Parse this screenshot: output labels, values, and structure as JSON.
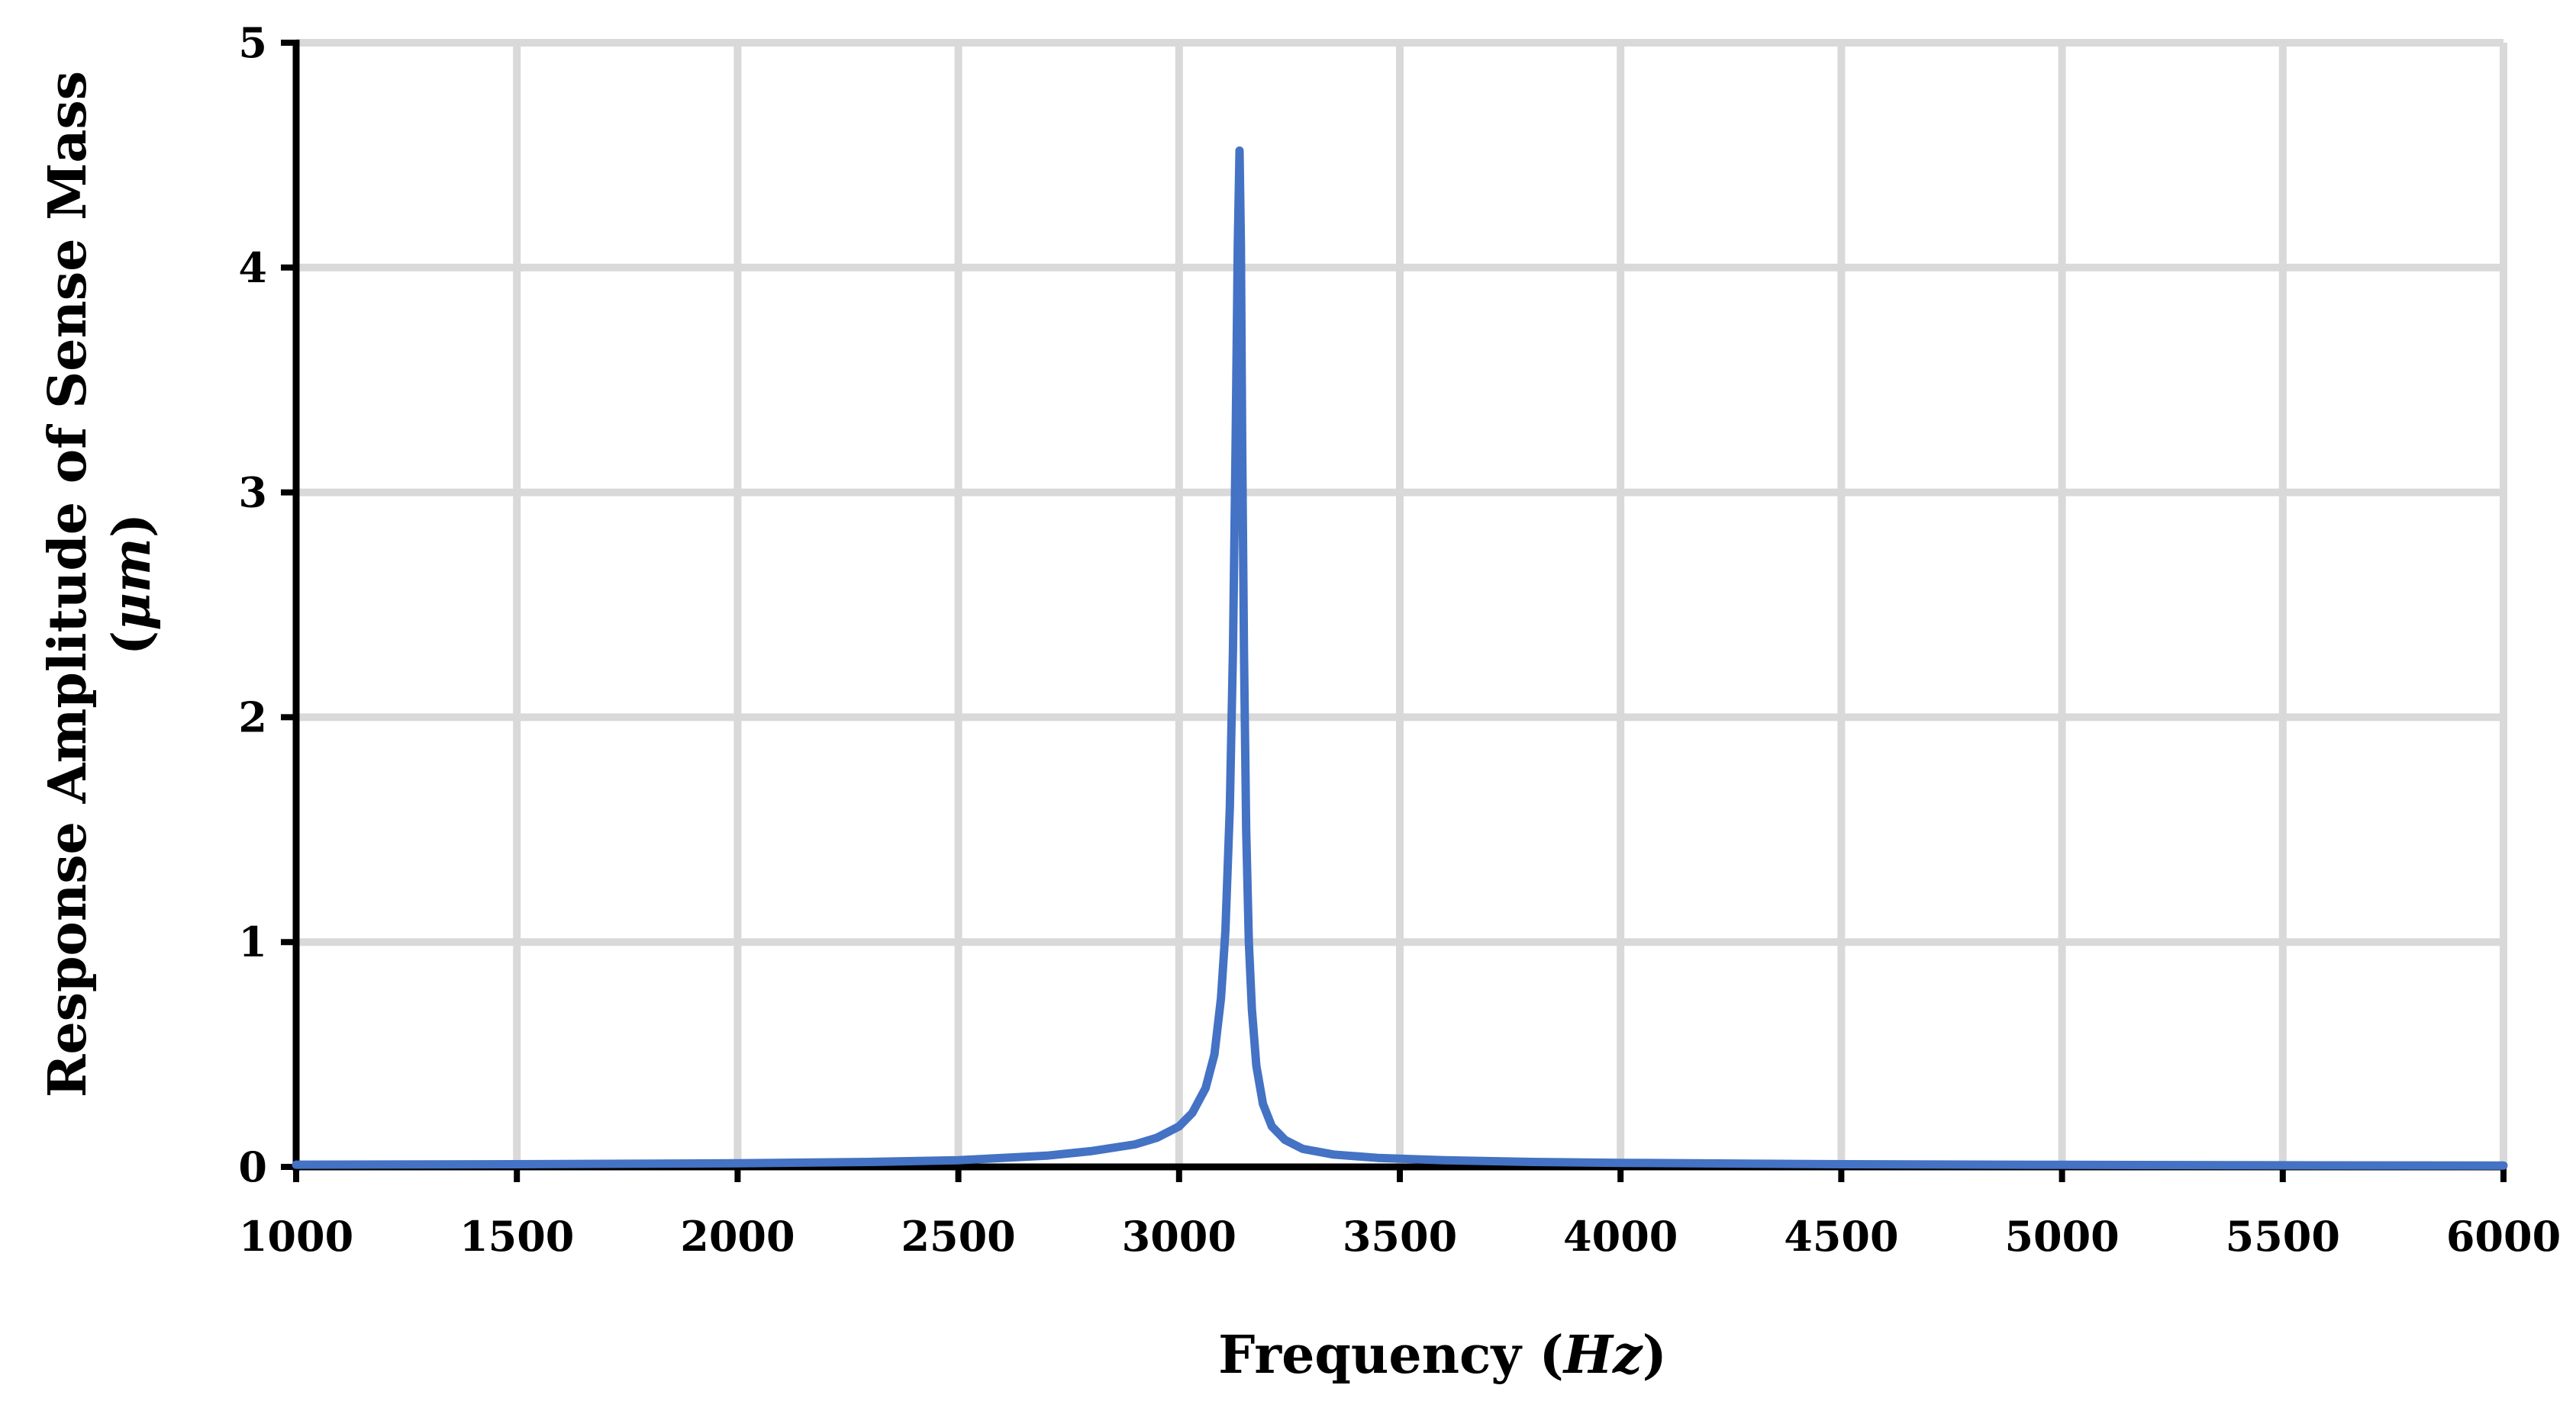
{
  "chart_data": {
    "type": "line",
    "title": "",
    "xlabel": {
      "prefix": "Frequency (",
      "italic": "Hz",
      "suffix": ")"
    },
    "ylabel": {
      "line1": "Response Amplitude of Sense Mass",
      "prefix": "(",
      "italic": "μm",
      "suffix": ")"
    },
    "xlim": [
      1000,
      6000
    ],
    "ylim": [
      0,
      5
    ],
    "x_ticks": [
      1000,
      1500,
      2000,
      2500,
      3000,
      3500,
      4000,
      4500,
      5000,
      5500,
      6000
    ],
    "x_tick_labels": [
      "1000",
      "1500",
      "2000",
      "2500",
      "3000",
      "3500",
      "4000",
      "4500",
      "5000",
      "5500",
      "6000"
    ],
    "y_ticks": [
      0,
      1,
      2,
      3,
      4,
      5
    ],
    "y_tick_labels": [
      "0",
      "1",
      "2",
      "3",
      "4",
      "5"
    ],
    "grid": true,
    "legend": "none",
    "series": [
      {
        "color": "#4472C4",
        "x": [
          1000,
          1500,
          2000,
          2300,
          2500,
          2700,
          2800,
          2900,
          2950,
          3000,
          3030,
          3060,
          3080,
          3095,
          3105,
          3115,
          3122,
          3128,
          3133,
          3137,
          3140,
          3143,
          3147,
          3152,
          3158,
          3165,
          3175,
          3190,
          3210,
          3240,
          3280,
          3350,
          3450,
          3600,
          3800,
          4000,
          4500,
          5000,
          5500,
          6000
        ],
        "y": [
          0.01,
          0.012,
          0.016,
          0.022,
          0.03,
          0.05,
          0.07,
          0.1,
          0.13,
          0.18,
          0.24,
          0.35,
          0.5,
          0.75,
          1.05,
          1.6,
          2.3,
          3.2,
          4.1,
          4.52,
          4.1,
          3.2,
          2.3,
          1.5,
          1.0,
          0.7,
          0.45,
          0.28,
          0.18,
          0.12,
          0.08,
          0.055,
          0.04,
          0.03,
          0.022,
          0.018,
          0.012,
          0.009,
          0.007,
          0.006
        ]
      }
    ]
  }
}
